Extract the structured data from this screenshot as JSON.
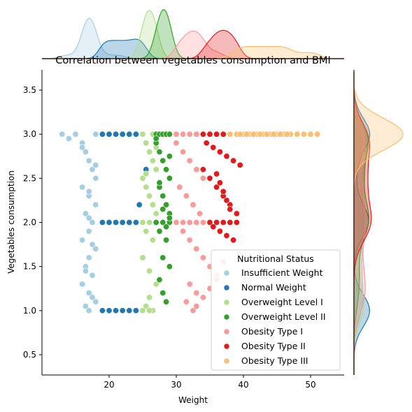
{
  "chart_data": {
    "type": "scatter",
    "title": "Correlation between vegetables consumption and BMI",
    "xlabel": "Weight",
    "ylabel": "Vegetables consumption",
    "xlim": [
      10,
      55
    ],
    "ylim": [
      0.27,
      3.73
    ],
    "xticks": [
      "20",
      "30",
      "40",
      "50"
    ],
    "yticks": [
      "0.5",
      "1.0",
      "1.5",
      "2.0",
      "2.5",
      "3.0",
      "3.5"
    ],
    "grid": false,
    "legend_title": "Nutritional Status",
    "legend_position": "lower-right",
    "series": [
      {
        "name": "Insufficient Weight",
        "color": "#a6cee3",
        "x": [
          13,
          14,
          15,
          16,
          16.5,
          17,
          17.5,
          18,
          16,
          17,
          18,
          16.5,
          17.5,
          17,
          16,
          18,
          17,
          16.5,
          17.5,
          16,
          17,
          18,
          17,
          16.5,
          17.5,
          17,
          16,
          18,
          17,
          17.5,
          16.5,
          17,
          18,
          19,
          20,
          21,
          22
        ],
        "y": [
          3.0,
          2.95,
          3.0,
          2.9,
          2.8,
          2.7,
          2.6,
          2.5,
          2.4,
          2.3,
          2.2,
          2.1,
          2.0,
          1.9,
          1.8,
          1.7,
          1.6,
          1.5,
          1.4,
          1.3,
          1.2,
          1.1,
          1.0,
          1.05,
          1.15,
          2.05,
          2.85,
          2.65,
          2.35,
          1.75,
          1.45,
          1.0,
          3.0,
          3.0,
          3.0,
          3.0,
          2.0
        ]
      },
      {
        "name": "Normal Weight",
        "color": "#1f78b4",
        "x": [
          19,
          20,
          21,
          22,
          23,
          24,
          25,
          19,
          20,
          21,
          22,
          23,
          24,
          19,
          20,
          21,
          22,
          23,
          24,
          25,
          25.5,
          24.5
        ],
        "y": [
          3.0,
          3.0,
          3.0,
          3.0,
          3.0,
          3.0,
          3.0,
          2.0,
          2.0,
          2.0,
          2.0,
          2.0,
          2.0,
          1.0,
          1.0,
          1.0,
          1.0,
          1.0,
          1.0,
          1.0,
          2.6,
          2.2
        ]
      },
      {
        "name": "Overweight Level I",
        "color": "#b2df8a",
        "x": [
          25,
          25.5,
          26,
          26.5,
          27,
          25,
          25.5,
          26,
          26.5,
          27,
          25,
          26,
          27,
          25.5,
          26.5,
          25,
          26,
          27,
          26,
          25.5,
          26.5,
          25,
          26,
          27,
          25.5,
          26.5
        ],
        "y": [
          3.0,
          2.9,
          2.8,
          2.7,
          2.6,
          2.5,
          2.4,
          2.3,
          2.2,
          2.1,
          2.0,
          2.0,
          2.0,
          1.9,
          1.8,
          1.6,
          1.45,
          1.3,
          1.15,
          1.05,
          1.0,
          1.0,
          1.0,
          2.85,
          2.55,
          3.0
        ]
      },
      {
        "name": "Overweight Level II",
        "color": "#33a02c",
        "x": [
          27,
          27.5,
          28,
          28.5,
          29,
          27,
          27.5,
          28,
          28.5,
          29,
          27.5,
          28,
          28.5,
          29,
          27,
          28,
          29,
          27.5,
          28.5,
          28,
          29,
          27.5,
          28,
          28.5,
          29,
          27,
          27.5,
          28,
          28.5,
          29
        ],
        "y": [
          3.0,
          3.0,
          3.0,
          3.0,
          3.0,
          2.9,
          2.8,
          2.7,
          2.6,
          2.5,
          2.4,
          2.3,
          2.2,
          2.1,
          2.0,
          2.0,
          2.0,
          1.9,
          1.8,
          1.6,
          1.5,
          1.35,
          1.2,
          1.1,
          2.75,
          2.95,
          2.45,
          2.15,
          1.95,
          2.05
        ]
      },
      {
        "name": "Obesity Type I",
        "color": "#fb9a99",
        "x": [
          30,
          31,
          32,
          33,
          34,
          30,
          31,
          32,
          33,
          34,
          30.5,
          31.5,
          32.5,
          33.5,
          30,
          31,
          32,
          33,
          34,
          31,
          32,
          33,
          34,
          35,
          36,
          32,
          33,
          31.5,
          32.5,
          33,
          34,
          35,
          36,
          37
        ],
        "y": [
          3.0,
          3.0,
          3.0,
          3.0,
          3.0,
          2.9,
          2.8,
          2.7,
          2.6,
          2.5,
          2.4,
          2.3,
          2.2,
          2.1,
          2.0,
          2.0,
          2.0,
          2.0,
          2.0,
          1.9,
          1.8,
          1.7,
          1.6,
          1.5,
          1.4,
          1.3,
          1.2,
          1.1,
          1.0,
          1.05,
          1.15,
          1.25,
          1.35,
          1.55
        ]
      },
      {
        "name": "Obesity Type II",
        "color": "#e31a1c",
        "x": [
          34,
          35,
          36,
          37,
          38,
          39,
          34.5,
          35.5,
          36.5,
          37.5,
          38.5,
          39.5,
          34,
          35,
          36,
          37,
          38,
          39,
          35,
          36,
          37,
          38,
          39,
          35.5,
          36.5,
          37.5,
          38.5,
          36,
          37,
          38,
          36.5,
          37.5
        ],
        "y": [
          3.0,
          3.0,
          3.0,
          3.0,
          3.0,
          3.0,
          2.9,
          2.85,
          2.8,
          2.75,
          2.7,
          2.65,
          2.6,
          2.5,
          2.4,
          2.3,
          2.2,
          2.1,
          2.0,
          2.0,
          2.0,
          2.0,
          2.0,
          1.95,
          1.9,
          1.85,
          1.8,
          2.55,
          2.35,
          2.15,
          2.45,
          2.25
        ]
      },
      {
        "name": "Obesity Type III",
        "color": "#fdbf6f",
        "x": [
          38,
          39,
          40,
          41,
          42,
          43,
          44,
          45,
          46,
          47,
          48,
          49,
          50,
          51,
          39.5,
          40.5,
          41.5,
          42.5,
          43.5,
          44.5,
          45.5,
          46.5
        ],
        "y": [
          3.0,
          3.0,
          3.0,
          3.0,
          3.0,
          3.0,
          3.0,
          3.0,
          3.0,
          3.0,
          3.0,
          3.0,
          3.0,
          3.0,
          3.0,
          3.0,
          3.0,
          3.0,
          3.0,
          3.0,
          3.0,
          3.0
        ]
      }
    ]
  }
}
